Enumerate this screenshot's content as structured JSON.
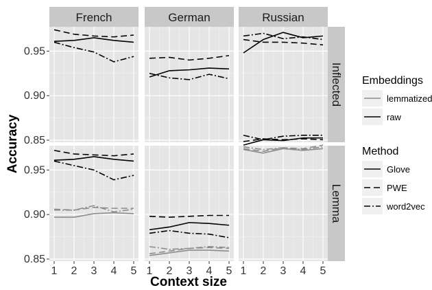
{
  "chart_data": {
    "type": "line",
    "xlabel": "Context size",
    "ylabel": "Accuracy",
    "x": [
      1,
      2,
      3,
      4,
      5
    ],
    "xlim": [
      1,
      5
    ],
    "ylim": [
      0.85,
      0.975
    ],
    "y_ticks": [
      0.85,
      0.9,
      0.95
    ],
    "y_tick_labels": [
      "0.85",
      "0.90",
      "0.95"
    ],
    "x_ticks": [
      1,
      2,
      3,
      4,
      5
    ],
    "x_tick_labels": [
      "1",
      "2",
      "3",
      "4",
      "5"
    ],
    "columns": [
      "French",
      "German",
      "Russian"
    ],
    "rows": [
      "Inflected",
      "Lemma"
    ],
    "grid": true,
    "legend_placement": "right",
    "legends": [
      {
        "title": "Embeddings",
        "entries": [
          {
            "label": "lemmatized",
            "color": "#8c8c8c"
          },
          {
            "label": "raw",
            "color": "#000000"
          }
        ]
      },
      {
        "title": "Method",
        "entries": [
          {
            "label": "Glove",
            "linestyle": "solid"
          },
          {
            "label": "PWE",
            "linestyle": "dashed"
          },
          {
            "label": "word2vec",
            "linestyle": "dashdot"
          }
        ]
      }
    ],
    "colors": {
      "raw": "#000000",
      "lemmatized": "#8c8c8c"
    },
    "panels": [
      {
        "column": "French",
        "row": "Inflected",
        "series": [
          {
            "method": "Glove",
            "embedding": "raw",
            "values": [
              0.961,
              0.962,
              0.965,
              0.962,
              0.96
            ]
          },
          {
            "method": "PWE",
            "embedding": "raw",
            "values": [
              0.974,
              0.969,
              0.967,
              0.966,
              0.968
            ]
          },
          {
            "method": "word2vec",
            "embedding": "raw",
            "values": [
              0.96,
              0.954,
              0.949,
              0.938,
              0.944
            ]
          }
        ]
      },
      {
        "column": "German",
        "row": "Inflected",
        "series": [
          {
            "method": "Glove",
            "embedding": "raw",
            "values": [
              0.921,
              0.928,
              0.929,
              0.931,
              0.93
            ]
          },
          {
            "method": "PWE",
            "embedding": "raw",
            "values": [
              0.942,
              0.943,
              0.94,
              0.942,
              0.945
            ]
          },
          {
            "method": "word2vec",
            "embedding": "raw",
            "values": [
              0.925,
              0.92,
              0.918,
              0.924,
              0.919
            ]
          }
        ]
      },
      {
        "column": "Russian",
        "row": "Inflected",
        "series": [
          {
            "method": "Glove",
            "embedding": "raw",
            "values": [
              0.948,
              0.963,
              0.971,
              0.965,
              0.967
            ]
          },
          {
            "method": "PWE",
            "embedding": "raw",
            "values": [
              0.963,
              0.96,
              0.96,
              0.959,
              0.957
            ]
          },
          {
            "method": "word2vec",
            "embedding": "raw",
            "values": [
              0.967,
              0.97,
              0.964,
              0.966,
              0.963
            ]
          }
        ]
      },
      {
        "column": "French",
        "row": "Lemma",
        "series": [
          {
            "method": "Glove",
            "embedding": "raw",
            "values": [
              0.961,
              0.962,
              0.965,
              0.962,
              0.96
            ]
          },
          {
            "method": "PWE",
            "embedding": "raw",
            "values": [
              0.972,
              0.968,
              0.967,
              0.966,
              0.968
            ]
          },
          {
            "method": "word2vec",
            "embedding": "raw",
            "values": [
              0.96,
              0.955,
              0.95,
              0.939,
              0.944
            ]
          },
          {
            "method": "Glove",
            "embedding": "lemmatized",
            "values": [
              0.897,
              0.897,
              0.901,
              0.902,
              0.901
            ]
          },
          {
            "method": "PWE",
            "embedding": "lemmatized",
            "values": [
              0.906,
              0.905,
              0.908,
              0.907,
              0.907
            ]
          },
          {
            "method": "word2vec",
            "embedding": "lemmatized",
            "values": [
              0.905,
              0.905,
              0.91,
              0.903,
              0.906
            ]
          }
        ]
      },
      {
        "column": "German",
        "row": "Lemma",
        "series": [
          {
            "method": "Glove",
            "embedding": "raw",
            "values": [
              0.883,
              0.886,
              0.891,
              0.89,
              0.888
            ]
          },
          {
            "method": "PWE",
            "embedding": "raw",
            "values": [
              0.898,
              0.897,
              0.898,
              0.899,
              0.899
            ]
          },
          {
            "method": "word2vec",
            "embedding": "raw",
            "values": [
              0.879,
              0.882,
              0.879,
              0.878,
              0.874
            ]
          },
          {
            "method": "Glove",
            "embedding": "lemmatized",
            "values": [
              0.854,
              0.857,
              0.86,
              0.86,
              0.859
            ]
          },
          {
            "method": "PWE",
            "embedding": "lemmatized",
            "values": [
              0.856,
              0.859,
              0.862,
              0.863,
              0.862
            ]
          },
          {
            "method": "word2vec",
            "embedding": "lemmatized",
            "values": [
              0.864,
              0.861,
              0.862,
              0.864,
              0.863
            ]
          }
        ]
      },
      {
        "column": "Russian",
        "row": "Lemma",
        "series": [
          {
            "method": "Glove",
            "embedding": "raw",
            "values": [
              0.978,
              0.984,
              0.983,
              0.986,
              0.986
            ]
          },
          {
            "method": "PWE",
            "embedding": "raw",
            "values": [
              0.982,
              0.985,
              0.984,
              0.985,
              0.984
            ]
          },
          {
            "method": "word2vec",
            "embedding": "raw",
            "values": [
              0.989,
              0.984,
              0.988,
              0.989,
              0.989
            ]
          },
          {
            "method": "Glove",
            "embedding": "lemmatized",
            "values": [
              0.973,
              0.969,
              0.974,
              0.972,
              0.974
            ]
          },
          {
            "method": "PWE",
            "embedding": "lemmatized",
            "values": [
              0.974,
              0.971,
              0.975,
              0.974,
              0.978
            ]
          },
          {
            "method": "word2vec",
            "embedding": "lemmatized",
            "values": [
              0.976,
              0.973,
              0.975,
              0.973,
              0.976
            ]
          }
        ]
      }
    ]
  }
}
